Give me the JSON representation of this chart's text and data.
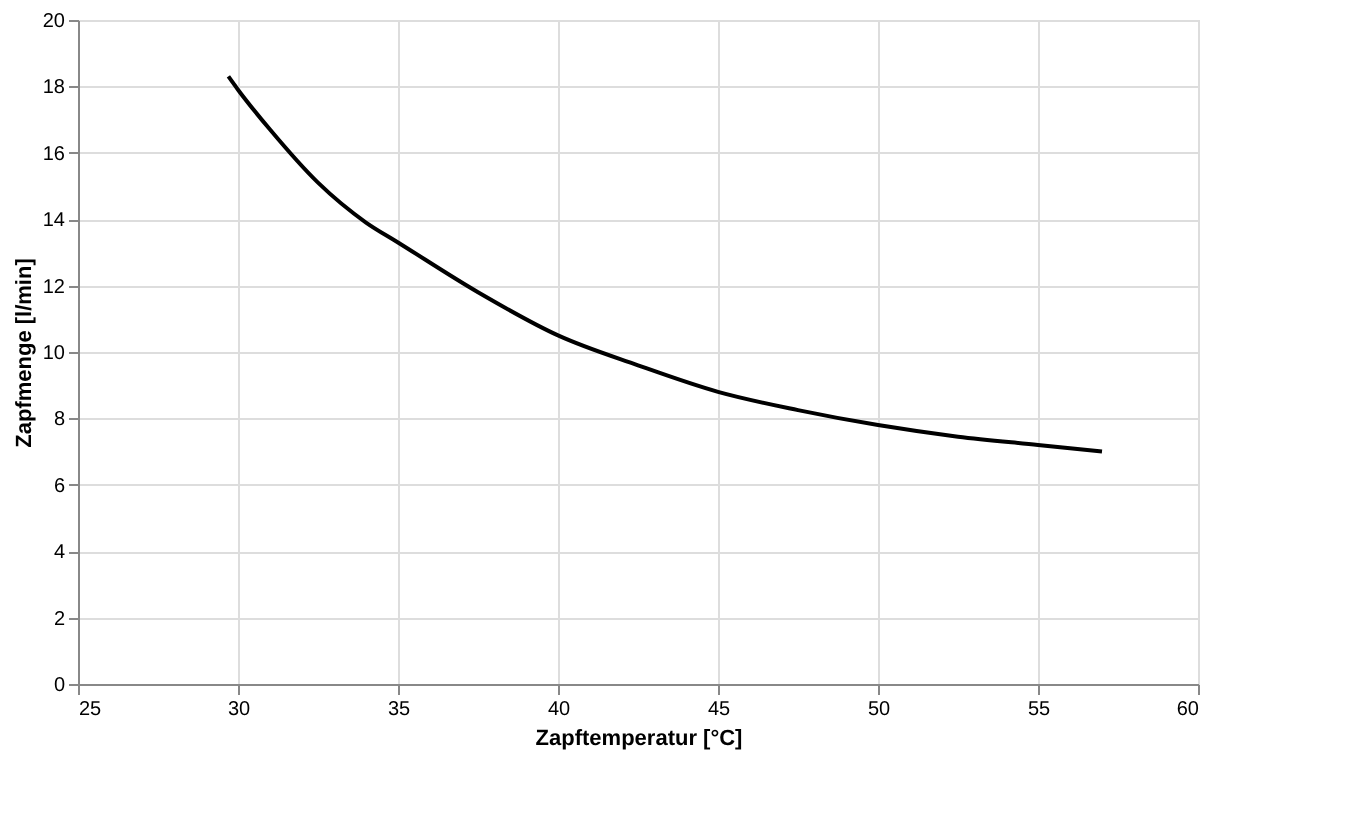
{
  "chart_data": {
    "type": "line",
    "xlabel": "Zapftemperatur [°C]",
    "ylabel": "Zapfmenge [l/min]",
    "x": [
      29.7,
      30,
      31,
      32.5,
      34,
      35,
      37.5,
      40,
      42.5,
      45,
      47.5,
      50,
      52.5,
      55,
      57
    ],
    "series": [
      {
        "color": "#000000",
        "values": [
          18.3,
          17.9,
          16.7,
          15.1,
          13.9,
          13.3,
          11.8,
          10.5,
          9.6,
          8.8,
          8.25,
          7.8,
          7.45,
          7.2,
          7.0
        ]
      }
    ],
    "xlim": [
      25,
      60
    ],
    "xticks": [
      25,
      30,
      35,
      40,
      45,
      50,
      55,
      60
    ],
    "ylim": [
      0,
      20
    ],
    "yticks": [
      0,
      2,
      4,
      6,
      8,
      10,
      12,
      14,
      16,
      18,
      20
    ],
    "grid": true,
    "marker": "none",
    "line_style": "solid"
  }
}
